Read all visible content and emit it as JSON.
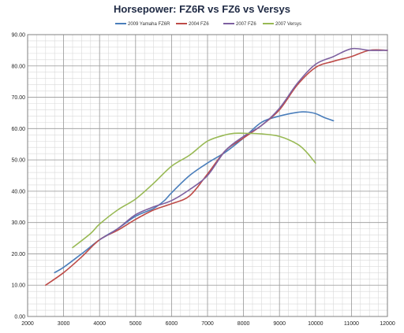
{
  "chart_data": {
    "type": "line",
    "title": "Horsepower: FZ6R vs FZ6 vs Versys",
    "xlabel": "",
    "ylabel": "",
    "xlim": [
      2000,
      12000
    ],
    "ylim": [
      0,
      90
    ],
    "grid": true,
    "legend_position": "top",
    "x_ticks": [
      "2000",
      "3000",
      "4000",
      "5000",
      "6000",
      "7000",
      "8000",
      "9000",
      "10000",
      "11000",
      "12000"
    ],
    "y_ticks": [
      "0.00",
      "10.00",
      "20.00",
      "30.00",
      "40.00",
      "50.00",
      "60.00",
      "70.00",
      "80.00",
      "90.00"
    ],
    "series": [
      {
        "name": "2009 Yamaha FZ6R",
        "color": "#4a7ebb",
        "points": [
          [
            2750,
            14
          ],
          [
            3000,
            15.7
          ],
          [
            3500,
            20
          ],
          [
            4000,
            24.5
          ],
          [
            4500,
            28
          ],
          [
            5000,
            32
          ],
          [
            5500,
            34.5
          ],
          [
            5800,
            37
          ],
          [
            6000,
            39.5
          ],
          [
            6500,
            45
          ],
          [
            7000,
            49
          ],
          [
            7500,
            52.5
          ],
          [
            8000,
            57
          ],
          [
            8500,
            62
          ],
          [
            9000,
            64
          ],
          [
            9500,
            65.2
          ],
          [
            9750,
            65.3
          ],
          [
            10000,
            64.8
          ],
          [
            10250,
            63.5
          ],
          [
            10500,
            62.5
          ]
        ]
      },
      {
        "name": "2004 FZ6",
        "color": "#be4b48",
        "points": [
          [
            2500,
            10
          ],
          [
            3000,
            14
          ],
          [
            3500,
            19
          ],
          [
            4000,
            24.5
          ],
          [
            4500,
            27.5
          ],
          [
            5000,
            31
          ],
          [
            5500,
            34
          ],
          [
            6000,
            36
          ],
          [
            6500,
            38.5
          ],
          [
            7000,
            45.5
          ],
          [
            7500,
            53
          ],
          [
            8000,
            57
          ],
          [
            8500,
            61
          ],
          [
            9000,
            66
          ],
          [
            9500,
            74
          ],
          [
            10000,
            79.5
          ],
          [
            10500,
            81.5
          ],
          [
            11000,
            83
          ],
          [
            11500,
            85
          ],
          [
            12000,
            85
          ]
        ]
      },
      {
        "name": "2007 FZ6",
        "color": "#7d60a0",
        "points": [
          [
            4000,
            24.5
          ],
          [
            4500,
            28
          ],
          [
            5000,
            32.5
          ],
          [
            5500,
            35
          ],
          [
            6000,
            37
          ],
          [
            6500,
            40.5
          ],
          [
            7000,
            45
          ],
          [
            7500,
            53
          ],
          [
            8000,
            57.5
          ],
          [
            8500,
            61
          ],
          [
            9000,
            66.5
          ],
          [
            9500,
            74.5
          ],
          [
            10000,
            80.5
          ],
          [
            10500,
            83
          ],
          [
            11000,
            85.5
          ],
          [
            11500,
            85
          ],
          [
            12000,
            85
          ]
        ]
      },
      {
        "name": "2007 Versys",
        "color": "#98b954",
        "points": [
          [
            3250,
            22
          ],
          [
            3750,
            26.5
          ],
          [
            4000,
            29.5
          ],
          [
            4500,
            34
          ],
          [
            5000,
            37.5
          ],
          [
            5500,
            42.5
          ],
          [
            6000,
            48
          ],
          [
            6500,
            51.5
          ],
          [
            7000,
            56
          ],
          [
            7500,
            58
          ],
          [
            7750,
            58.5
          ],
          [
            8000,
            58.5
          ],
          [
            8500,
            58.3
          ],
          [
            9000,
            57.5
          ],
          [
            9500,
            55
          ],
          [
            9750,
            52.5
          ],
          [
            10000,
            49
          ]
        ]
      }
    ]
  }
}
